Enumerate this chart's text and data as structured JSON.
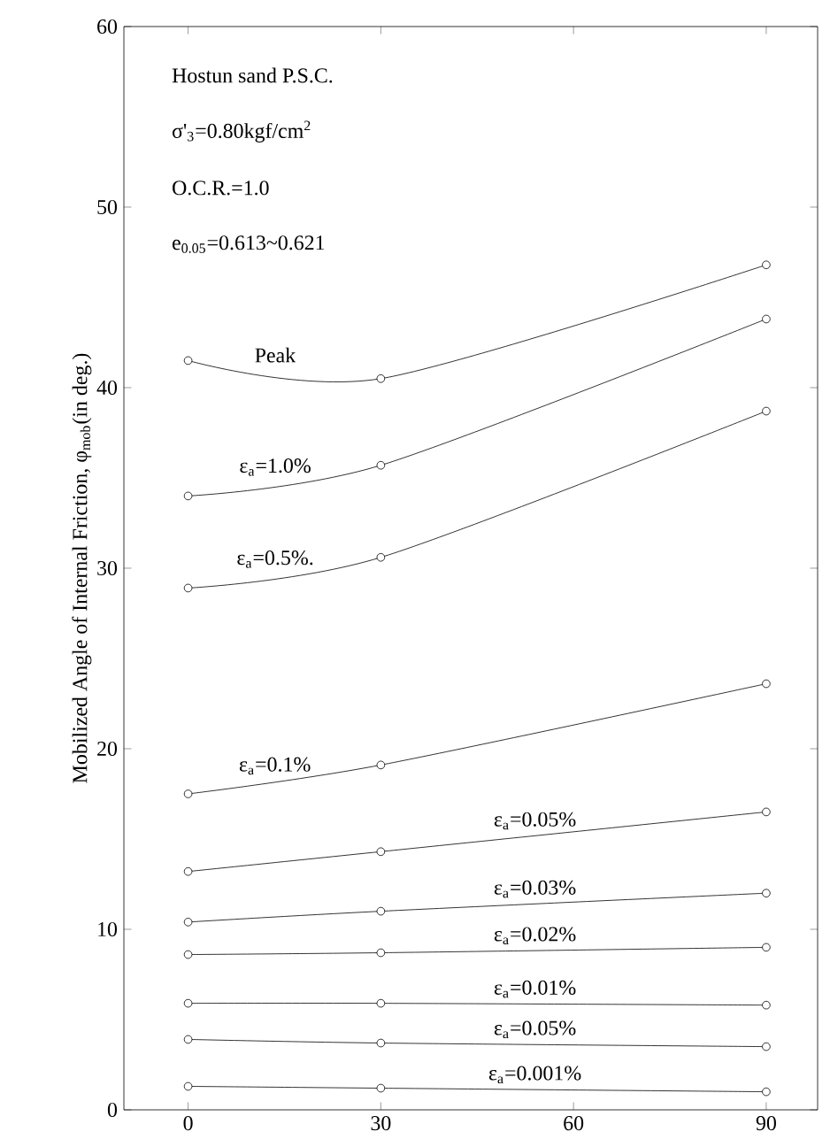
{
  "chart_data": {
    "type": "line",
    "ylabel": "Mobilized Angle of Internal Friction, φ$_{mob}$(in deg.)",
    "annotations": [
      "Hostun sand P.S.C.",
      "σ'$_{3}$=0.80kgf/cm$^{2}$",
      "O.C.R.=1.0",
      "e$_{0.05}$=0.613~0.621"
    ],
    "x": [
      0,
      30,
      90
    ],
    "series": [
      {
        "name": "Peak",
        "color": "#000000",
        "values": [
          41.5,
          40.5,
          46.8
        ]
      },
      {
        "name": "ε$_{a}$=1.0%",
        "color": "#000000",
        "values": [
          34.0,
          35.7,
          43.8
        ]
      },
      {
        "name": "ε$_{a}$=0.5%.",
        "color": "#000000",
        "values": [
          28.9,
          30.6,
          38.7
        ]
      },
      {
        "name": "ε$_{a}$=0.1%",
        "color": "#000000",
        "values": [
          17.5,
          19.1,
          23.6
        ]
      },
      {
        "name": "ε$_{a}$=0.05%",
        "color": "#000000",
        "values": [
          13.2,
          14.3,
          16.5
        ]
      },
      {
        "name": "ε$_{a}$=0.03%",
        "color": "#000000",
        "values": [
          10.4,
          11.0,
          12.0
        ]
      },
      {
        "name": "ε$_{a}$=0.02%",
        "color": "#000000",
        "values": [
          8.6,
          8.7,
          9.0
        ]
      },
      {
        "name": "ε$_{a}$=0.01%",
        "color": "#000000",
        "values": [
          5.9,
          5.9,
          5.8
        ]
      },
      {
        "name": "ε$_{a}$=0.05%",
        "color": "#000000",
        "values": [
          3.9,
          3.7,
          3.5
        ]
      },
      {
        "name": "ε$_{a}$=0.001%",
        "color": "#000000",
        "values": [
          1.3,
          1.2,
          1.0
        ]
      }
    ],
    "xlim": [
      -10,
      98
    ],
    "ylim": [
      0,
      60
    ],
    "xticks": [
      0,
      30,
      60,
      90
    ],
    "yticks": [
      0,
      10,
      20,
      30,
      40,
      50,
      60
    ],
    "marker": "circle",
    "line_style": "solid",
    "grid": false
  }
}
